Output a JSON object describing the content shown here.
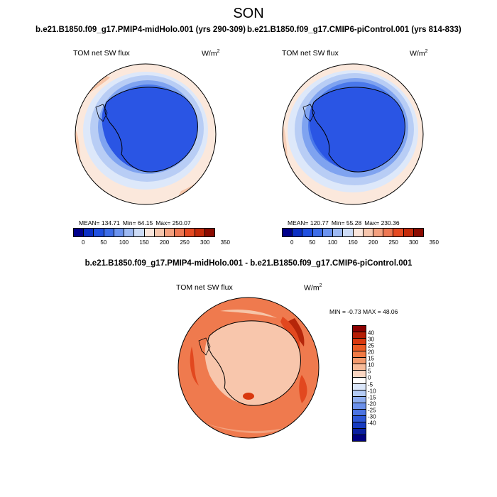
{
  "figure": {
    "title": "SON",
    "left_case": "b.e21.B1850.f09_g17.PMIP4-midHolo.001 (yrs 290-309)",
    "right_case": "b.e21.B1850.f09_g17.CMIP6-piControl.001 (yrs 814-833)",
    "diff_title": "b.e21.B1850.f09_g17.PMIP4-midHolo.001 - b.e21.B1850.f09_g17.CMIP6-piControl.001"
  },
  "panels": {
    "left": {
      "variable": "TOM net SW flux",
      "units_base": "W/m",
      "units_exp": "2",
      "mean": "MEAN= 134.71",
      "min": "Min=  64.15",
      "max": "Max= 250.07"
    },
    "right": {
      "variable": "TOM net SW flux",
      "units_base": "W/m",
      "units_exp": "2",
      "mean": "MEAN= 120.77",
      "min": "Min=  55.28",
      "max": "Max= 230.36"
    },
    "diff": {
      "variable": "TOM net SW flux",
      "units_base": "W/m",
      "units_exp": "2",
      "minmax": "MIN =  -0.73 MAX =  48.06"
    }
  },
  "colorbars": {
    "abs_colors": [
      "#00008b",
      "#0b2fc4",
      "#2050e0",
      "#3d6de8",
      "#6b93ef",
      "#9db9f3",
      "#cddcf7",
      "#fbe6dc",
      "#f7c6ad",
      "#f4a07e",
      "#ee7752",
      "#e64a22",
      "#c42a0a",
      "#8b0a00"
    ],
    "abs_ticks": [
      "0",
      "50",
      "100",
      "150",
      "200",
      "250",
      "300",
      "350"
    ],
    "diff_colors": [
      "#8b0000",
      "#b51d05",
      "#d9380e",
      "#ea5a23",
      "#f07a45",
      "#f39a6d",
      "#f7bb99",
      "#fad6c2",
      "#ffffff",
      "#dbe7fa",
      "#b4cbf5",
      "#8eadef",
      "#6b90ea",
      "#4c74e2",
      "#2e57d6",
      "#173bc0",
      "#0a1fa0",
      "#000080"
    ],
    "diff_ticks": [
      "40",
      "30",
      "25",
      "20",
      "15",
      "10",
      "5",
      "0",
      "-5",
      "-10",
      "-15",
      "-20",
      "-25",
      "-30",
      "-40"
    ]
  },
  "map_colors": {
    "deep_blue": "#2a55e4",
    "mid_blue": "#4a78ea",
    "light_blue": "#7fa3f0",
    "pale_blue": "#b8cdf5",
    "ice_blue": "#dde8fa",
    "pale_peach": "#fbe8dc",
    "peach": "#f6c5a8",
    "salmon": "#f2a27f",
    "diff_orange": "#ef7a4e",
    "diff_light": "#f8c6ac",
    "diff_red": "#e2481f",
    "diff_dark": "#b5260a"
  }
}
